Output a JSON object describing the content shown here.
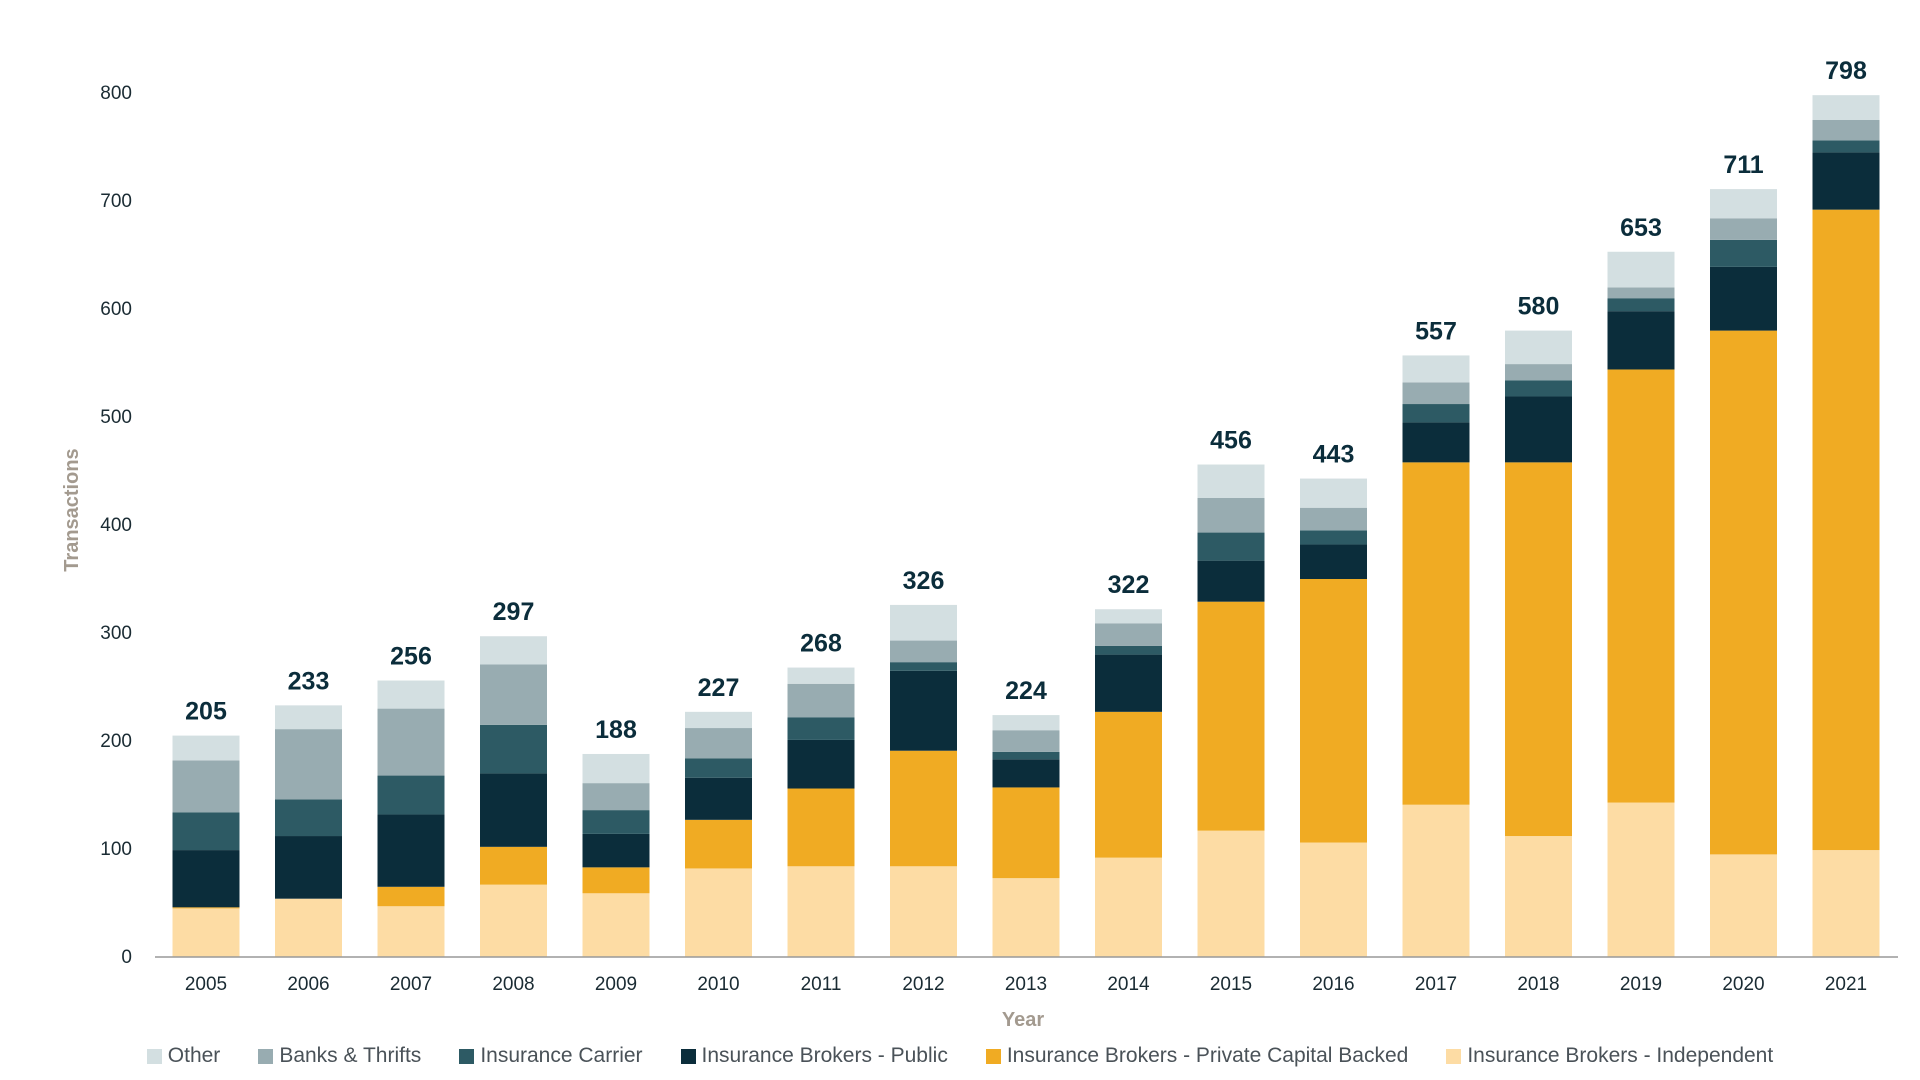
{
  "chart_data": {
    "type": "bar",
    "stacked": true,
    "title": "",
    "xlabel": "Year",
    "ylabel": "Transactions",
    "ylim": [
      0,
      800
    ],
    "yticks": [
      0,
      100,
      200,
      300,
      400,
      500,
      600,
      700,
      800
    ],
    "grid": false,
    "legend_position": "bottom",
    "categories": [
      "2005",
      "2006",
      "2007",
      "2008",
      "2009",
      "2010",
      "2011",
      "2012",
      "2013",
      "2014",
      "2015",
      "2016",
      "2017",
      "2018",
      "2019",
      "2020",
      "2021"
    ],
    "totals": [
      205,
      233,
      256,
      297,
      188,
      227,
      268,
      326,
      224,
      322,
      456,
      443,
      557,
      580,
      653,
      711,
      798
    ],
    "series": [
      {
        "name": "Insurance Brokers - Independent",
        "color": "#fddca4",
        "values": [
          45,
          54,
          47,
          67,
          59,
          82,
          84,
          84,
          73,
          92,
          117,
          106,
          141,
          112,
          143,
          95,
          99
        ]
      },
      {
        "name": "Insurance Brokers - Private Capital Backed",
        "color": "#f0ab23",
        "values": [
          1,
          0,
          18,
          35,
          24,
          45,
          72,
          107,
          84,
          135,
          212,
          244,
          317,
          346,
          401,
          485,
          593
        ]
      },
      {
        "name": "Insurance Brokers - Public",
        "color": "#0b2d3b",
        "values": [
          53,
          58,
          67,
          68,
          31,
          39,
          45,
          74,
          26,
          53,
          38,
          32,
          37,
          61,
          54,
          59,
          53
        ]
      },
      {
        "name": "Insurance Carrier",
        "color": "#2d5a64",
        "values": [
          35,
          34,
          36,
          45,
          22,
          18,
          21,
          8,
          7,
          8,
          26,
          13,
          17,
          15,
          12,
          25,
          11
        ]
      },
      {
        "name": "Banks & Thrifts",
        "color": "#98acb1",
        "values": [
          48,
          65,
          62,
          56,
          25,
          28,
          31,
          20,
          20,
          21,
          32,
          21,
          20,
          15,
          10,
          20,
          19
        ]
      },
      {
        "name": "Other",
        "color": "#d3dfe1",
        "values": [
          23,
          22,
          26,
          26,
          27,
          15,
          15,
          33,
          14,
          13,
          31,
          27,
          25,
          31,
          33,
          27,
          23
        ]
      }
    ],
    "legend_order": [
      "Other",
      "Banks & Thrifts",
      "Insurance Carrier",
      "Insurance Brokers - Public",
      "Insurance Brokers - Private Capital Backed",
      "Insurance Brokers - Independent"
    ]
  }
}
